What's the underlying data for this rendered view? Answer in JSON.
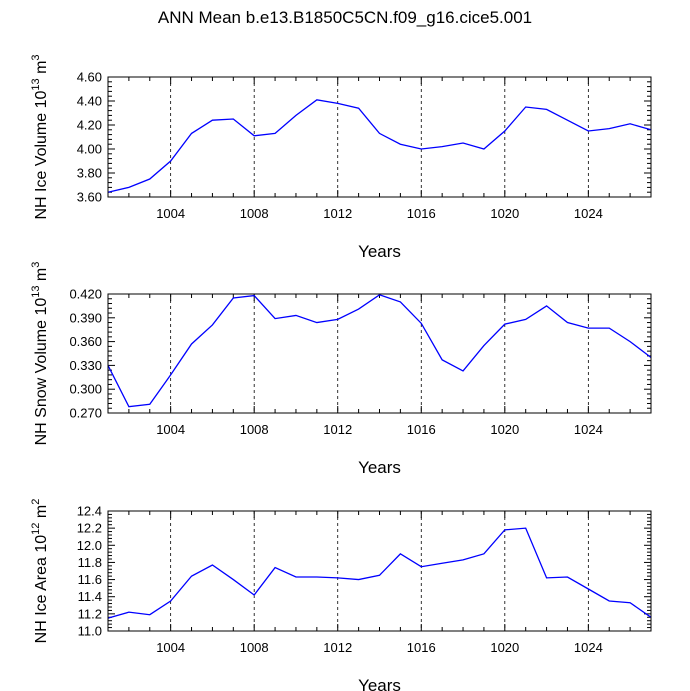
{
  "title": "ANN Mean b.e13.B1850C5CN.f09_g16.cice5.001",
  "chart_data": [
    {
      "type": "line",
      "x": [
        1001,
        1002,
        1003,
        1004,
        1005,
        1006,
        1007,
        1008,
        1009,
        1010,
        1011,
        1012,
        1013,
        1014,
        1015,
        1016,
        1017,
        1018,
        1019,
        1020,
        1021,
        1022,
        1023,
        1024,
        1025,
        1026,
        1027
      ],
      "series": [
        {
          "values": [
            3.64,
            3.68,
            3.75,
            3.9,
            4.13,
            4.24,
            4.25,
            4.11,
            4.13,
            4.28,
            4.41,
            4.38,
            4.34,
            4.13,
            4.04,
            4.0,
            4.02,
            4.05,
            4.0,
            4.15,
            4.35,
            4.33,
            4.24,
            4.15,
            4.17,
            4.21,
            4.16
          ],
          "color": "#0000ff"
        }
      ],
      "ylabel": {
        "main": "NH Ice Volume 10",
        "sup": "13",
        "unit": " m",
        "unit_sup": "3"
      },
      "xlabel": "Years",
      "xlim": [
        1001,
        1027
      ],
      "ylim": [
        3.6,
        4.6
      ],
      "yticks": [
        "3.60",
        "3.80",
        "4.00",
        "4.20",
        "4.40",
        "4.60"
      ],
      "xticks": [
        "1004",
        "1008",
        "1012",
        "1016",
        "1020",
        "1024"
      ],
      "grid": "vertical dashed at major x ticks"
    },
    {
      "type": "line",
      "x": [
        1001,
        1002,
        1003,
        1004,
        1005,
        1006,
        1007,
        1008,
        1009,
        1010,
        1011,
        1012,
        1013,
        1014,
        1015,
        1016,
        1017,
        1018,
        1019,
        1020,
        1021,
        1022,
        1023,
        1024,
        1025,
        1026,
        1027
      ],
      "series": [
        {
          "values": [
            0.33,
            0.278,
            0.281,
            0.318,
            0.357,
            0.381,
            0.415,
            0.418,
            0.389,
            0.393,
            0.384,
            0.388,
            0.401,
            0.419,
            0.41,
            0.383,
            0.337,
            0.323,
            0.355,
            0.382,
            0.388,
            0.405,
            0.384,
            0.377,
            0.377,
            0.36,
            0.34
          ],
          "color": "#0000ff"
        }
      ],
      "ylabel": {
        "main": "NH Snow Volume 10",
        "sup": "13",
        "unit": " m",
        "unit_sup": "3"
      },
      "xlabel": "Years",
      "xlim": [
        1001,
        1027
      ],
      "ylim": [
        0.27,
        0.42
      ],
      "yticks": [
        "0.270",
        "0.300",
        "0.330",
        "0.360",
        "0.390",
        "0.420"
      ],
      "xticks": [
        "1004",
        "1008",
        "1012",
        "1016",
        "1020",
        "1024"
      ],
      "grid": "vertical dashed at major x ticks"
    },
    {
      "type": "line",
      "x": [
        1001,
        1002,
        1003,
        1004,
        1005,
        1006,
        1007,
        1008,
        1009,
        1010,
        1011,
        1012,
        1013,
        1014,
        1015,
        1016,
        1017,
        1018,
        1019,
        1020,
        1021,
        1022,
        1023,
        1024,
        1025,
        1026,
        1027
      ],
      "series": [
        {
          "values": [
            11.15,
            11.22,
            11.19,
            11.35,
            11.64,
            11.77,
            11.6,
            11.42,
            11.74,
            11.63,
            11.63,
            11.62,
            11.6,
            11.65,
            11.9,
            11.75,
            11.79,
            11.83,
            11.9,
            12.18,
            12.2,
            11.62,
            11.63,
            11.49,
            11.35,
            11.33,
            11.16
          ],
          "color": "#0000ff"
        }
      ],
      "ylabel": {
        "main": "NH Ice Area 10",
        "sup": "12",
        "unit": " m",
        "unit_sup": "2"
      },
      "xlabel": "Years",
      "xlim": [
        1001,
        1027
      ],
      "ylim": [
        11.0,
        12.4
      ],
      "yticks": [
        "11.0",
        "11.2",
        "11.4",
        "11.6",
        "11.8",
        "12.0",
        "12.2",
        "12.4"
      ],
      "xticks": [
        "1004",
        "1008",
        "1012",
        "1016",
        "1020",
        "1024"
      ],
      "grid": "vertical dashed at major x ticks"
    }
  ]
}
